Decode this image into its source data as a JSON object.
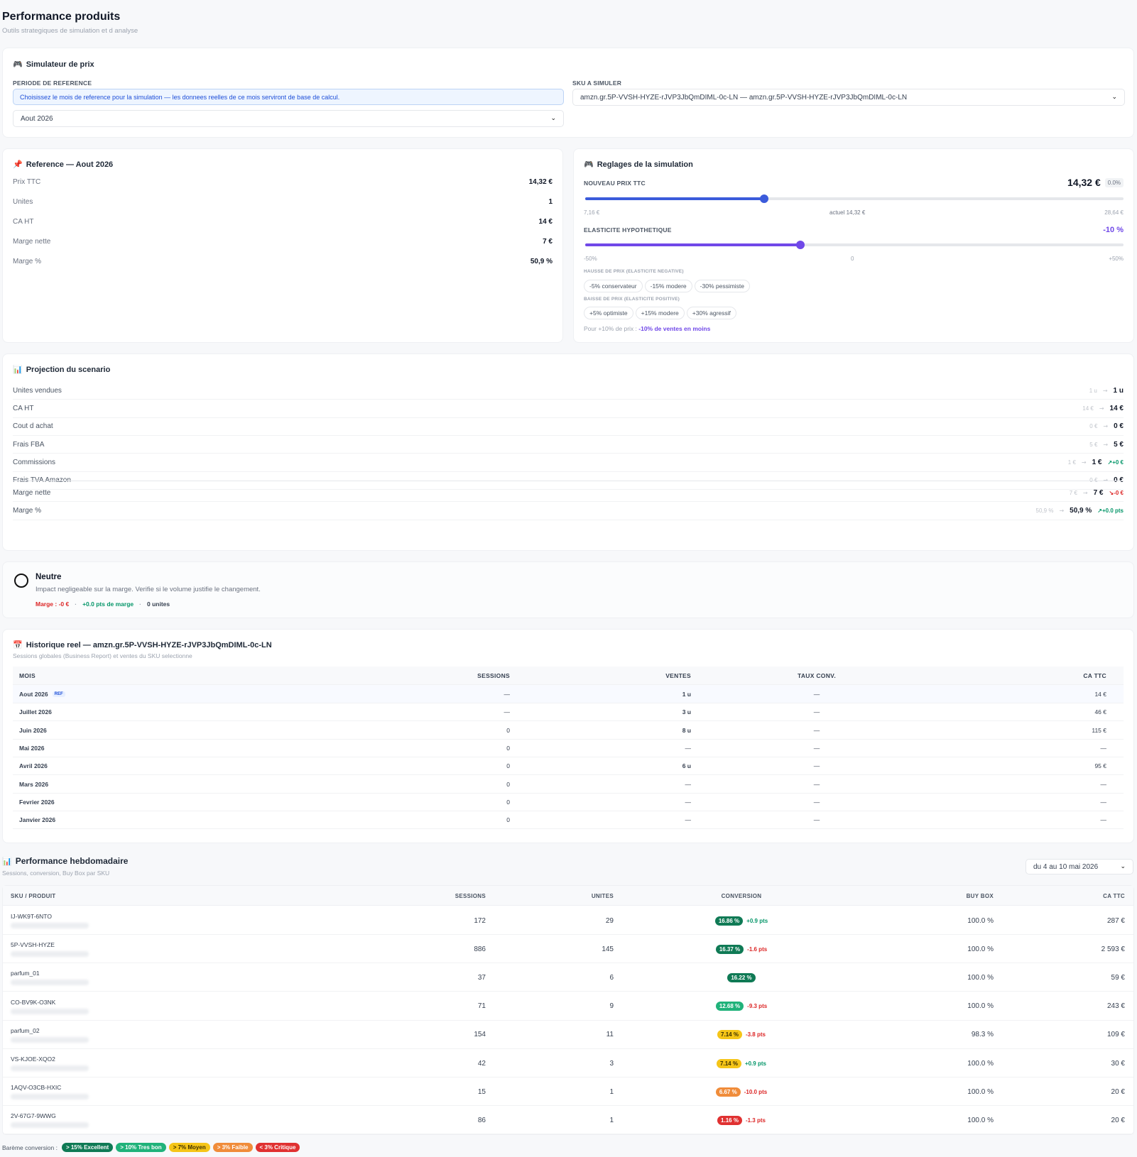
{
  "header": {
    "title": "Performance produits",
    "subtitle": "Outils strategiques de simulation et d analyse"
  },
  "simulator": {
    "icon": "gamepad-icon",
    "title": "Simulateur de prix",
    "period_label": "PERIODE DE REFERENCE",
    "period_info": "Choisissez le mois de reference pour la simulation — les donnees reelles de ce mois serviront de base de calcul.",
    "period_value": "Aout 2026",
    "sku_label": "SKU A SIMULER",
    "sku_value": "amzn.gr.5P-VVSH-HYZE-rJVP3JbQmDIML-0c-LN — amzn.gr.5P-VVSH-HYZE-rJVP3JbQmDIML-0c-LN"
  },
  "reference": {
    "icon": "pushpin-icon",
    "title": "Reference — Aout 2026",
    "rows": [
      {
        "label": "Prix TTC",
        "value": "14,32 €"
      },
      {
        "label": "Unites",
        "value": "1"
      },
      {
        "label": "CA HT",
        "value": "14 €"
      },
      {
        "label": "Marge nette",
        "value": "7 €"
      },
      {
        "label": "Marge %",
        "value": "50,9 %"
      }
    ]
  },
  "settings": {
    "icon": "gamepad-icon",
    "title": "Reglages de la simulation",
    "price_label": "NOUVEAU PRIX TTC",
    "price_value": "14,32 €",
    "price_delta": "0.0%",
    "price_fill": 0.333,
    "price_min": "7,16 €",
    "price_mid": "actuel 14,32 €",
    "price_max": "28,64 €",
    "elasticity_label": "ELASTICITE HYPOTHETIQUE",
    "elasticity_value": "-10 %",
    "elasticity_fill": 0.4,
    "elasticity_min": "-50%",
    "elasticity_mid": "0",
    "elasticity_max": "+50%",
    "hausse_label": "HAUSSE DE PRIX (ELASTICITE NEGATIVE)",
    "hausse_chips": [
      "-5% conservateur",
      "-15% modere",
      "-30% pessimiste"
    ],
    "baisse_label": "BAISSE DE PRIX (ELASTICITE POSITIVE)",
    "baisse_chips": [
      "+5% optimiste",
      "+15% modere",
      "+30% agressif"
    ],
    "note_prefix": "Pour +10% de prix : ",
    "note_value": "-10% de ventes en moins",
    "accent_blue": "#3b5bdb",
    "accent_purple": "#7048e8"
  },
  "projection": {
    "icon": "bar-chart-icon",
    "title": "Projection du scenario",
    "rows": [
      {
        "label": "Unites vendues",
        "old": "1 u",
        "new": "1 u",
        "delta": ""
      },
      {
        "label": "CA HT",
        "old": "14 €",
        "new": "14 €",
        "delta": ""
      },
      {
        "label": "Cout d achat",
        "old": "0 €",
        "new": "0 €",
        "delta": ""
      },
      {
        "label": "Frais FBA",
        "old": "5 €",
        "new": "5 €",
        "delta": ""
      },
      {
        "label": "Commissions",
        "old": "1 €",
        "new": "1 €",
        "delta": "↗+0 €"
      },
      {
        "label": "Frais TVA Amazon",
        "old": "0 €",
        "new": "0 €",
        "delta": ""
      }
    ],
    "margin_rows": [
      {
        "label": "Marge nette",
        "old": "7 €",
        "new": "7 €",
        "delta": "↘-0 €",
        "tone": "neg"
      },
      {
        "label": "Marge %",
        "old": "50,9 %",
        "new": "50,9 %",
        "delta": "↗+0.0 pts",
        "tone": "pos"
      }
    ],
    "arrow": "→"
  },
  "verdict": {
    "title": "Neutre",
    "description": "Impact negligeable sur la marge. Verifie si le volume justifie le changement.",
    "margin": "Marge : -0 €",
    "pts": "+0.0 pts de marge",
    "units": "0 unites",
    "sep": "·"
  },
  "history": {
    "icon": "calendar-icon",
    "title": "Historique reel — amzn.gr.5P-VVSH-HYZE-rJVP3JbQmDIML-0c-LN",
    "subtitle": "Sessions globales (Business Report) et ventes du SKU selectionne",
    "columns": [
      "MOIS",
      "SESSIONS",
      "VENTES",
      "TAUX CONV.",
      "CA TTC"
    ],
    "ref_badge": "REF",
    "rows": [
      {
        "mois": "Aout 2026",
        "sessions": "—",
        "ventes": "1 u",
        "taux": "—",
        "ca": "14 €",
        "ref": true
      },
      {
        "mois": "Juillet 2026",
        "sessions": "—",
        "ventes": "3 u",
        "taux": "—",
        "ca": "46 €"
      },
      {
        "mois": "Juin 2026",
        "sessions": "0",
        "ventes": "8 u",
        "taux": "—",
        "ca": "115 €"
      },
      {
        "mois": "Mai 2026",
        "sessions": "0",
        "ventes": "—",
        "taux": "—",
        "ca": "—"
      },
      {
        "mois": "Avril 2026",
        "sessions": "0",
        "ventes": "6 u",
        "taux": "—",
        "ca": "95 €"
      },
      {
        "mois": "Mars 2026",
        "sessions": "0",
        "ventes": "—",
        "taux": "—",
        "ca": "—"
      },
      {
        "mois": "Fevrier 2026",
        "sessions": "0",
        "ventes": "—",
        "taux": "—",
        "ca": "—"
      },
      {
        "mois": "Janvier 2026",
        "sessions": "0",
        "ventes": "—",
        "taux": "—",
        "ca": "—"
      }
    ]
  },
  "weekly": {
    "icon": "bar-chart-icon",
    "title": "Performance hebdomadaire",
    "subtitle": "Sessions, conversion, Buy Box par SKU",
    "period": "du 4 au 10 mai 2026",
    "columns": [
      "SKU / PRODUIT",
      "SESSIONS",
      "UNITES",
      "CONVERSION",
      "BUY BOX",
      "CA TTC"
    ],
    "rows": [
      {
        "sku": "IJ-WK9T-6NTO",
        "sessions": "172",
        "units": "29",
        "conv": "16.86 %",
        "conv_color": "#0f7a55",
        "delta": "+0.9 pts",
        "tone": "pos",
        "buybox": "100.0 %",
        "ca": "287 €"
      },
      {
        "sku": "5P-VVSH-HYZE",
        "sessions": "886",
        "units": "145",
        "conv": "16.37 %",
        "conv_color": "#0f7a55",
        "delta": "-1.6 pts",
        "tone": "neg",
        "buybox": "100.0 %",
        "ca": "2 593 €"
      },
      {
        "sku": "parfum_01",
        "sessions": "37",
        "units": "6",
        "conv": "16.22 %",
        "conv_color": "#0f7a55",
        "delta": "",
        "tone": "pos",
        "buybox": "100.0 %",
        "ca": "59 €"
      },
      {
        "sku": "CO-BV9K-O3NK",
        "sessions": "71",
        "units": "9",
        "conv": "12.68 %",
        "conv_color": "#20b27a",
        "delta": "-9.3 pts",
        "tone": "neg",
        "buybox": "100.0 %",
        "ca": "243 €"
      },
      {
        "sku": "parfum_02",
        "sessions": "154",
        "units": "11",
        "conv": "7.14 %",
        "conv_color": "#f5c518",
        "delta": "-3.8 pts",
        "tone": "neg",
        "buybox": "98.3 %",
        "ca": "109 €"
      },
      {
        "sku": "VS-KJOE-XQO2",
        "sessions": "42",
        "units": "3",
        "conv": "7.14 %",
        "conv_color": "#f5c518",
        "delta": "+0.9 pts",
        "tone": "pos",
        "buybox": "100.0 %",
        "ca": "30 €"
      },
      {
        "sku": "1AQV-O3CB-HXIC",
        "sessions": "15",
        "units": "1",
        "conv": "6.67 %",
        "conv_color": "#f08c3a",
        "delta": "-10.0 pts",
        "tone": "neg",
        "buybox": "100.0 %",
        "ca": "20 €"
      },
      {
        "sku": "2V-67G7-9WWG",
        "sessions": "86",
        "units": "1",
        "conv": "1.16 %",
        "conv_color": "#e03131",
        "delta": "-1.3 pts",
        "tone": "neg",
        "buybox": "100.0 %",
        "ca": "20 €"
      }
    ],
    "legend_label": "Barème conversion :",
    "legend": [
      {
        "label": "> 15% Excellent",
        "color": "#0f7a55"
      },
      {
        "label": "> 10% Tres bon",
        "color": "#20b27a"
      },
      {
        "label": "> 7% Moyen",
        "color": "#f5c518"
      },
      {
        "label": "> 3% Faible",
        "color": "#f08c3a"
      },
      {
        "label": "< 3% Critique",
        "color": "#e03131"
      }
    ]
  }
}
